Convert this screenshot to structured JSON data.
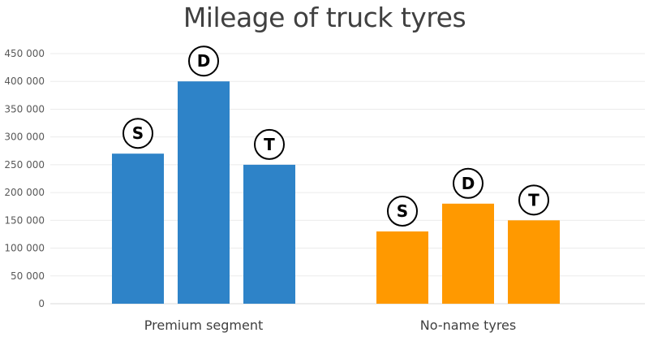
{
  "chart_data": {
    "type": "bar",
    "title": "Mileage of truck tyres",
    "xlabel": "",
    "ylabel": "",
    "ylim": [
      0,
      450000
    ],
    "yticks": [
      0,
      50000,
      100000,
      150000,
      200000,
      250000,
      300000,
      350000,
      400000,
      450000
    ],
    "ytick_labels": [
      "0",
      "50 000",
      "100 000",
      "150 000",
      "200 000",
      "250 000",
      "300 000",
      "350 000",
      "400 000",
      "450 000"
    ],
    "grid": true,
    "categories": [
      "Premium segment",
      "No-name tyres"
    ],
    "groups": [
      {
        "category": "Premium segment",
        "color": "#2E83C8",
        "bars": [
          {
            "badge": "S",
            "value": 270000
          },
          {
            "badge": "D",
            "value": 400000
          },
          {
            "badge": "T",
            "value": 250000
          }
        ]
      },
      {
        "category": "No-name tyres",
        "color": "#FF9900",
        "bars": [
          {
            "badge": "S",
            "value": 130000
          },
          {
            "badge": "D",
            "value": 180000
          },
          {
            "badge": "T",
            "value": 150000
          }
        ]
      }
    ]
  }
}
